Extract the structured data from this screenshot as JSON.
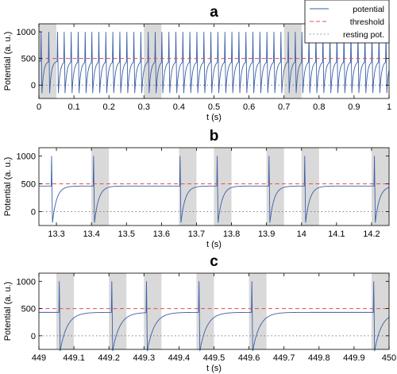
{
  "legend": {
    "potential": "potential",
    "threshold": "threshold",
    "resting": "resting pot."
  },
  "colors": {
    "potential": "#3a5fa8",
    "threshold": "#e05050",
    "resting": "#808080",
    "shade": "#d9d9d9"
  },
  "chart_data": [
    {
      "type": "line",
      "title": "a",
      "xlabel": "t (s)",
      "ylabel": "Potential (a. u.)",
      "xlim": [
        0,
        1
      ],
      "ylim": [
        -250,
        1150
      ],
      "xticks": [
        0,
        0.1,
        0.2,
        0.3,
        0.4,
        0.5,
        0.6,
        0.7,
        0.8,
        0.9,
        1
      ],
      "xtick_labels": [
        "0",
        "0.1",
        "0.2",
        "0.3",
        "0.4",
        "0.5",
        "0.6",
        "0.7",
        "0.8",
        "0.9",
        "1"
      ],
      "yticks": [
        0,
        500,
        1000
      ],
      "ytick_labels": [
        "0",
        "500",
        "1000"
      ],
      "threshold": 500,
      "resting": 0,
      "shaded_intervals": [
        [
          0,
          0.05
        ],
        [
          0.3,
          0.35
        ],
        [
          0.7,
          0.75
        ]
      ],
      "spike_times": [
        0.005,
        0.027,
        0.052,
        0.071,
        0.091,
        0.111,
        0.131,
        0.15,
        0.17,
        0.19,
        0.21,
        0.23,
        0.25,
        0.27,
        0.29,
        0.311,
        0.331,
        0.35,
        0.37,
        0.39,
        0.41,
        0.43,
        0.45,
        0.47,
        0.49,
        0.51,
        0.53,
        0.55,
        0.57,
        0.59,
        0.61,
        0.63,
        0.65,
        0.67,
        0.69,
        0.711,
        0.731,
        0.75,
        0.77,
        0.79,
        0.81,
        0.83,
        0.85,
        0.87,
        0.89,
        0.91,
        0.93,
        0.95,
        0.97,
        0.99
      ],
      "spike_peak": 1000,
      "trough": -150,
      "plateau": 450,
      "recovery_tau": 0.005
    },
    {
      "type": "line",
      "title": "b",
      "xlabel": "t (s)",
      "ylabel": "Potential (a. u.)",
      "xlim": [
        13.25,
        14.25
      ],
      "ylim": [
        -250,
        1150
      ],
      "xticks": [
        13.3,
        13.4,
        13.5,
        13.6,
        13.7,
        13.8,
        13.9,
        14,
        14.1,
        14.2
      ],
      "xtick_labels": [
        "13.3",
        "13.4",
        "13.5",
        "13.6",
        "13.7",
        "13.8",
        "13.9",
        "14",
        "14.1",
        "14.2"
      ],
      "yticks": [
        0,
        500,
        1000
      ],
      "ytick_labels": [
        "0",
        "500",
        "1000"
      ],
      "threshold": 500,
      "resting": 0,
      "shaded_intervals": [
        [
          13.4,
          13.45
        ],
        [
          13.65,
          13.7
        ],
        [
          13.75,
          13.8
        ],
        [
          13.9,
          13.95
        ],
        [
          14,
          14.05
        ],
        [
          14.2,
          14.25
        ]
      ],
      "spike_times": [
        13.285,
        13.405,
        13.652,
        13.758,
        13.906,
        14.008,
        14.207
      ],
      "spike_peak": 1000,
      "trough": -200,
      "plateau": 460,
      "recovery_tau": 0.012
    },
    {
      "type": "line",
      "title": "c",
      "xlabel": "t (s)",
      "ylabel": "Potential (a. u.)",
      "xlim": [
        449,
        450
      ],
      "ylim": [
        -250,
        1150
      ],
      "xticks": [
        449,
        449.1,
        449.2,
        449.3,
        449.4,
        449.5,
        449.6,
        449.7,
        449.8,
        449.9,
        450
      ],
      "xtick_labels": [
        "449",
        "449.1",
        "449.2",
        "449.3",
        "449.4",
        "449.5",
        "449.6",
        "449.7",
        "449.8",
        "449.9",
        "450"
      ],
      "yticks": [
        0,
        500,
        1000
      ],
      "ytick_labels": [
        "0",
        "500",
        "1000"
      ],
      "threshold": 500,
      "resting": 0,
      "shaded_intervals": [
        [
          449.05,
          449.1
        ],
        [
          449.2,
          449.25
        ],
        [
          449.3,
          449.35
        ],
        [
          449.45,
          449.5
        ],
        [
          449.6,
          449.65
        ],
        [
          449.95,
          450
        ]
      ],
      "spike_times": [
        449.057,
        449.207,
        449.306,
        449.456,
        449.607,
        449.955
      ],
      "spike_peak": 1000,
      "trough": -280,
      "plateau": 430,
      "recovery_tau": 0.02
    }
  ]
}
